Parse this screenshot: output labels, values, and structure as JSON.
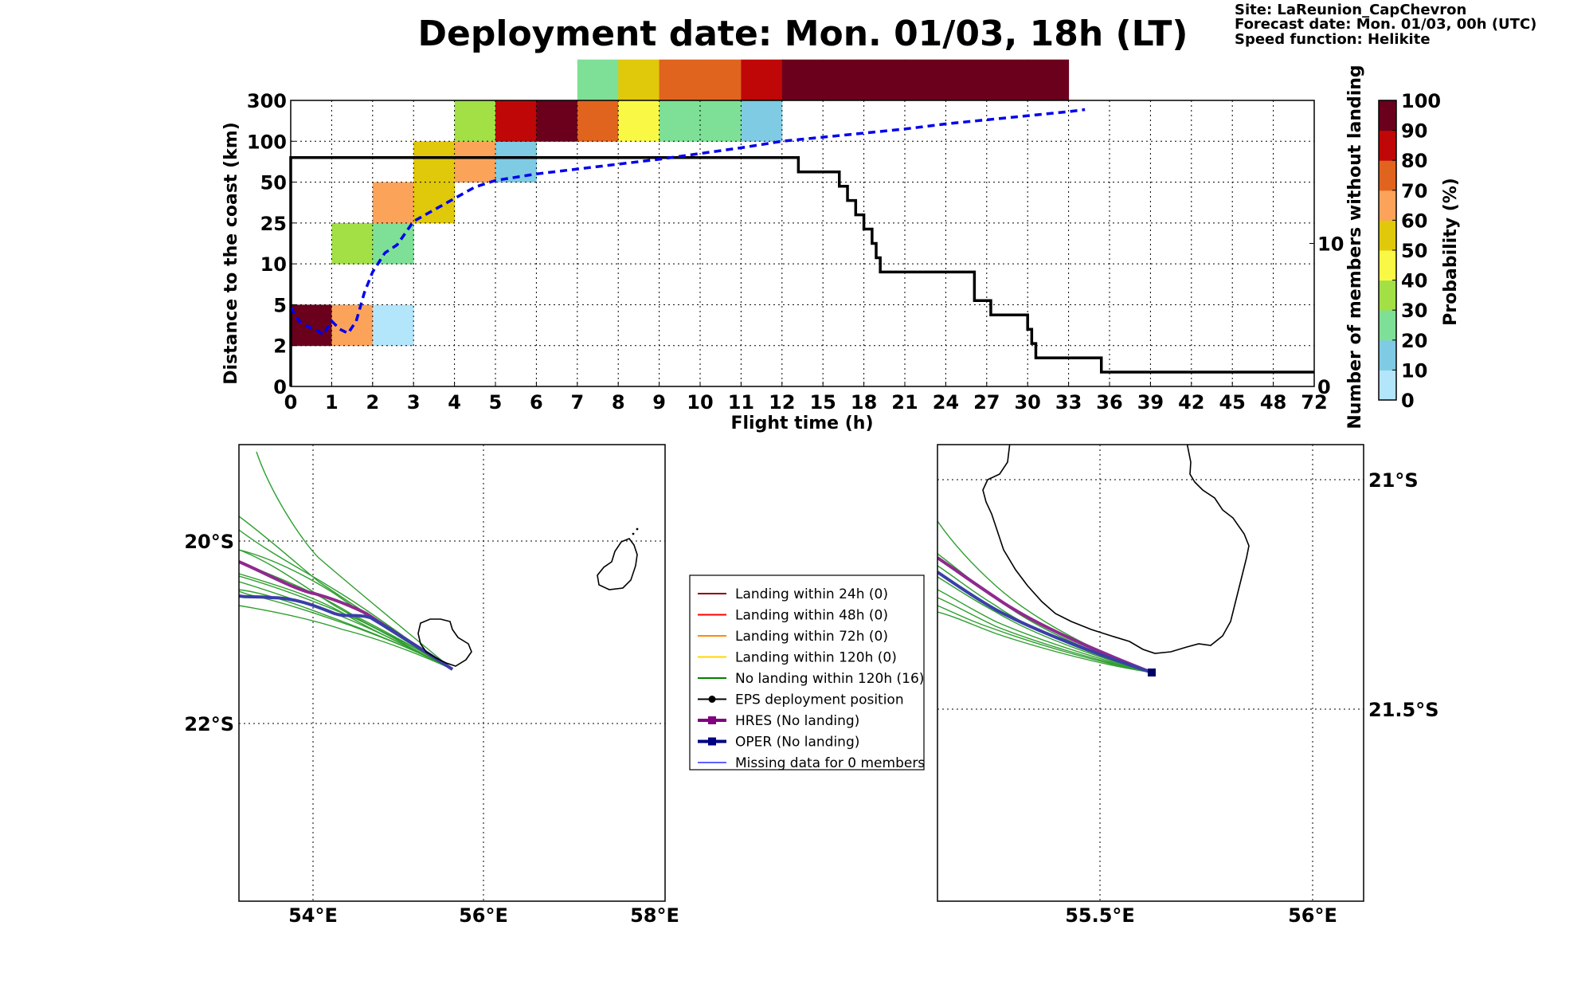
{
  "header": {
    "title": "Deployment date: Mon. 01/03, 18h (LT)",
    "site": "Site: LaReunion_CapChevron",
    "forecast": "Forecast date: Mon. 01/03, 00h (UTC)",
    "speed": "Speed function: Helikite"
  },
  "chart_data": [
    {
      "type": "heatmap",
      "xlabel": "Flight time (h)",
      "ylabel": "Distance to the coast (km)",
      "y2label": "Number of members without landing",
      "colorbar_label": "Probability (%)",
      "x_ticks": [
        "0",
        "1",
        "2",
        "3",
        "4",
        "5",
        "6",
        "7",
        "8",
        "9",
        "10",
        "11",
        "12",
        "15",
        "18",
        "21",
        "24",
        "27",
        "30",
        "33",
        "36",
        "39",
        "42",
        "45",
        "48",
        "72"
      ],
      "y_ticks": [
        "0",
        "2",
        "5",
        "10",
        "25",
        "50",
        "100",
        "300"
      ],
      "y2_ticks": [
        "0",
        "10"
      ],
      "y2_range": [
        0,
        20
      ],
      "colorbar_ticks": [
        "0",
        "10",
        "20",
        "30",
        "40",
        "50",
        "60",
        "70",
        "80",
        "90",
        "100"
      ],
      "colorbar_colors": [
        "#b3e5fb",
        "#7ecbe3",
        "#7ee096",
        "#a2e046",
        "#f9f945",
        "#e0c80a",
        "#fca35a",
        "#e0641e",
        "#c00707",
        "#6a001c"
      ],
      "grid": true,
      "cells": [
        {
          "t": 0,
          "band": 1,
          "p": 95
        },
        {
          "t": 1,
          "band": 1,
          "p": 65
        },
        {
          "t": 1,
          "band": 3,
          "p": 35
        },
        {
          "t": 2,
          "band": 1,
          "p": 5
        },
        {
          "t": 2,
          "band": 3,
          "p": 25
        },
        {
          "t": 2,
          "band": 4,
          "p": 65
        },
        {
          "t": 3,
          "band": 4,
          "p": 55
        },
        {
          "t": 3,
          "band": 5,
          "p": 55
        },
        {
          "t": 4,
          "band": 5,
          "p": 65
        },
        {
          "t": 4,
          "band": 6,
          "p": 35
        },
        {
          "t": 5,
          "band": 5,
          "p": 15
        },
        {
          "t": 5,
          "band": 6,
          "p": 85
        },
        {
          "t": 6,
          "band": 6,
          "p": 95
        },
        {
          "t": 7,
          "band": 6,
          "p": 75
        },
        {
          "t": 7,
          "band": 7,
          "p": 25
        },
        {
          "t": 8,
          "band": 6,
          "p": 45
        },
        {
          "t": 8,
          "band": 7,
          "p": 55
        },
        {
          "t": 9,
          "band": 6,
          "p": 25
        },
        {
          "t": 9,
          "band": 7,
          "p": 75
        },
        {
          "t": 10,
          "band": 6,
          "p": 25
        },
        {
          "t": 10,
          "band": 7,
          "p": 75
        },
        {
          "t": 11,
          "band": 6,
          "p": 15
        },
        {
          "t": 11,
          "band": 7,
          "p": 85
        },
        {
          "t": 12,
          "band": 7,
          "p": 95
        },
        {
          "t": 13,
          "band": 7,
          "p": 95
        },
        {
          "t": 14,
          "band": 7,
          "p": 95
        },
        {
          "t": 15,
          "band": 7,
          "p": 95
        },
        {
          "t": 16,
          "band": 7,
          "p": 95
        },
        {
          "t": 17,
          "band": 7,
          "p": 95
        },
        {
          "t": 18,
          "band": 7,
          "p": 95
        }
      ],
      "mean_distance_line": {
        "color": "#0000ee",
        "points": [
          [
            0,
            4.8
          ],
          [
            0.2,
            3.8
          ],
          [
            0.4,
            3.4
          ],
          [
            0.6,
            3.2
          ],
          [
            0.8,
            2.8
          ],
          [
            1.0,
            3.8
          ],
          [
            1.2,
            3.2
          ],
          [
            1.4,
            2.9
          ],
          [
            1.6,
            3.8
          ],
          [
            1.8,
            6.5
          ],
          [
            2.0,
            9
          ],
          [
            2.3,
            14
          ],
          [
            2.6,
            17
          ],
          [
            3.0,
            26
          ],
          [
            3.5,
            33
          ],
          [
            4.0,
            40
          ],
          [
            4.5,
            47
          ],
          [
            5.0,
            52
          ],
          [
            6.0,
            60
          ],
          [
            7.0,
            66
          ],
          [
            8.0,
            72
          ],
          [
            9.0,
            78
          ],
          [
            10.0,
            85
          ],
          [
            11.0,
            92
          ],
          [
            12.0,
            100
          ],
          [
            13.0,
            120
          ],
          [
            14.0,
            140
          ],
          [
            15.0,
            160
          ],
          [
            16.0,
            185
          ],
          [
            17.0,
            205
          ],
          [
            18.0,
            225
          ],
          [
            19.0,
            245
          ],
          [
            19.4,
            255
          ]
        ]
      },
      "members_without_landing_step": {
        "color": "#000000",
        "points": [
          [
            0,
            0
          ],
          [
            0,
            16
          ],
          [
            12.4,
            16
          ],
          [
            12.4,
            15
          ],
          [
            13.4,
            15
          ],
          [
            13.4,
            14
          ],
          [
            13.6,
            14
          ],
          [
            13.6,
            13
          ],
          [
            13.8,
            13
          ],
          [
            13.8,
            12
          ],
          [
            14.0,
            12
          ],
          [
            14.0,
            11
          ],
          [
            14.2,
            11
          ],
          [
            14.2,
            10
          ],
          [
            14.3,
            10
          ],
          [
            14.3,
            9
          ],
          [
            14.4,
            9
          ],
          [
            14.4,
            8
          ],
          [
            16.7,
            8
          ],
          [
            16.7,
            6
          ],
          [
            17.1,
            6
          ],
          [
            17.1,
            5
          ],
          [
            18.0,
            5
          ],
          [
            18.0,
            4
          ],
          [
            18.1,
            4
          ],
          [
            18.1,
            3
          ],
          [
            18.2,
            3
          ],
          [
            18.2,
            2
          ],
          [
            19.8,
            2
          ],
          [
            19.8,
            1
          ],
          [
            25,
            1
          ]
        ]
      }
    }
  ],
  "map_left": {
    "x_ticks": [
      "54°E",
      "56°E",
      "58°E"
    ],
    "y_ticks": [
      "20°S",
      "22°S"
    ],
    "legend": [
      {
        "label": "Landing within 24h (0)",
        "color": "#8b0000",
        "style": "line"
      },
      {
        "label": "Landing within 48h (0)",
        "color": "#ff0000",
        "style": "line"
      },
      {
        "label": "Landing within 72h (0)",
        "color": "#ff8c00",
        "style": "line"
      },
      {
        "label": "Landing within 120h (0)",
        "color": "#ffd700",
        "style": "line"
      },
      {
        "label": "No landing within 120h (16)",
        "color": "#008000",
        "style": "line"
      },
      {
        "label": "EPS deployment position",
        "color": "#000000",
        "style": "dot"
      },
      {
        "label": "HRES (No landing)",
        "color": "#800080",
        "style": "square"
      },
      {
        "label": "OPER (No landing)",
        "color": "#000080",
        "style": "square"
      },
      {
        "label": "Missing data for 0 members",
        "color": "#0000ff",
        "style": "thin"
      }
    ]
  },
  "map_right": {
    "x_ticks": [
      "55.5°E",
      "56°E"
    ],
    "y_ticks": [
      "21°S",
      "21.5°S"
    ]
  }
}
